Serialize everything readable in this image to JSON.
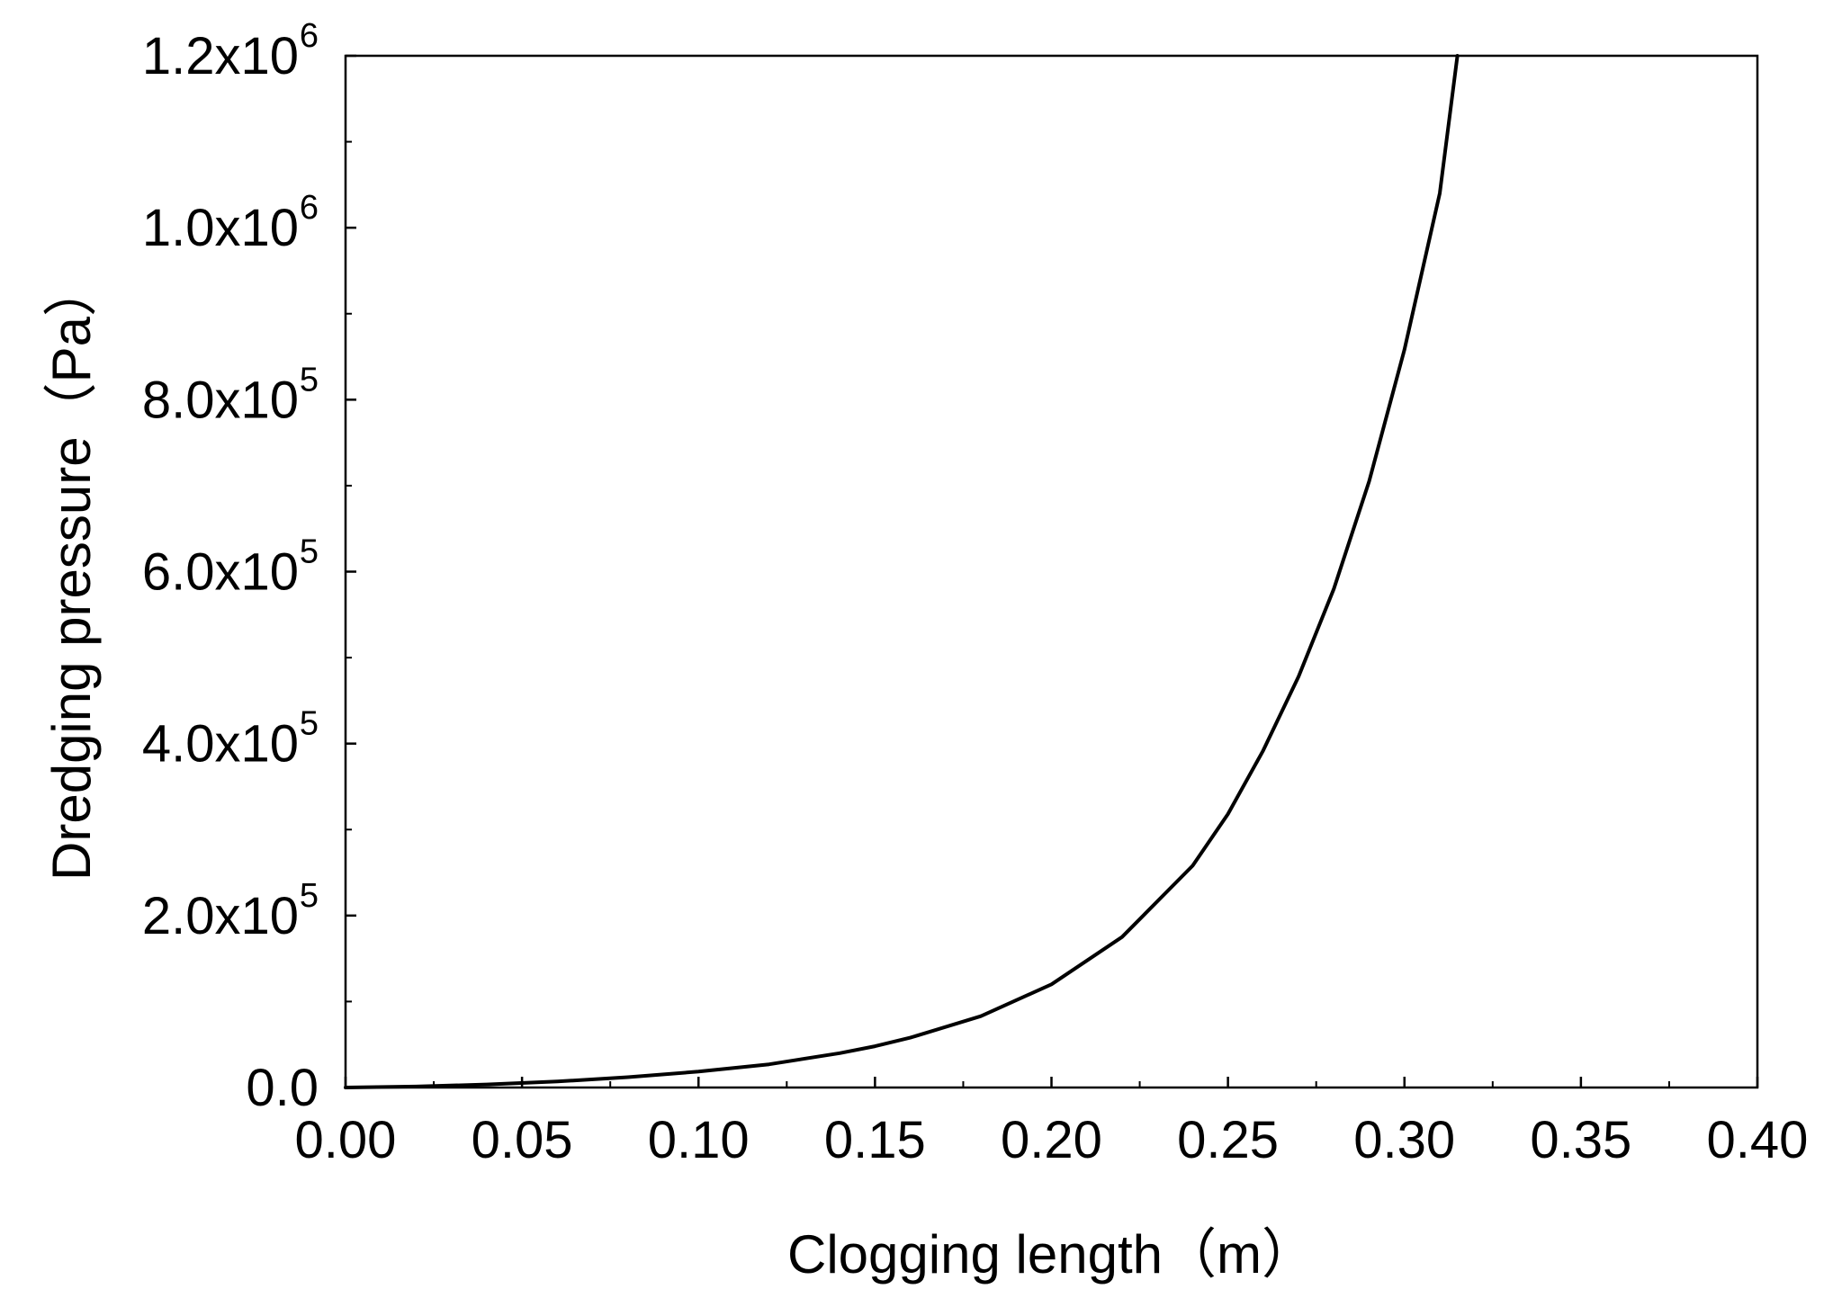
{
  "chart_data": {
    "type": "line",
    "title": "",
    "xlabel": "Clogging length（m）",
    "ylabel": "Dredging pressure（Pa）",
    "xlim": [
      0.0,
      0.4
    ],
    "ylim": [
      0,
      1200000
    ],
    "x_ticks": [
      {
        "value": 0.0,
        "label": "0.00"
      },
      {
        "value": 0.05,
        "label": "0.05"
      },
      {
        "value": 0.1,
        "label": "0.10"
      },
      {
        "value": 0.15,
        "label": "0.15"
      },
      {
        "value": 0.2,
        "label": "0.20"
      },
      {
        "value": 0.25,
        "label": "0.25"
      },
      {
        "value": 0.3,
        "label": "0.30"
      },
      {
        "value": 0.35,
        "label": "0.35"
      },
      {
        "value": 0.4,
        "label": "0.40"
      }
    ],
    "y_ticks": [
      {
        "value": 0,
        "mantissa": "0.0",
        "exponent": ""
      },
      {
        "value": 200000,
        "mantissa": "2.0x10",
        "exponent": "5"
      },
      {
        "value": 400000,
        "mantissa": "4.0x10",
        "exponent": "5"
      },
      {
        "value": 600000,
        "mantissa": "6.0x10",
        "exponent": "5"
      },
      {
        "value": 800000,
        "mantissa": "8.0x10",
        "exponent": "5"
      },
      {
        "value": 1000000,
        "mantissa": "1.0x10",
        "exponent": "6"
      },
      {
        "value": 1200000,
        "mantissa": "1.2x10",
        "exponent": "6"
      }
    ],
    "grid": false,
    "legend": "none",
    "line_color": "#000000",
    "series": [
      {
        "x": [
          0.0,
          0.02,
          0.04,
          0.06,
          0.08,
          0.1,
          0.12,
          0.14,
          0.15,
          0.16,
          0.18,
          0.2,
          0.22,
          0.24,
          0.25,
          0.26,
          0.27,
          0.28,
          0.29,
          0.3,
          0.31,
          0.315
        ],
        "y": [
          0,
          1200,
          3600,
          7000,
          12000,
          18500,
          27000,
          40000,
          48000,
          58000,
          83000,
          120000,
          175000,
          258000,
          318000,
          392000,
          478000,
          580000,
          705000,
          858000,
          1040000,
          1200000
        ]
      }
    ]
  }
}
